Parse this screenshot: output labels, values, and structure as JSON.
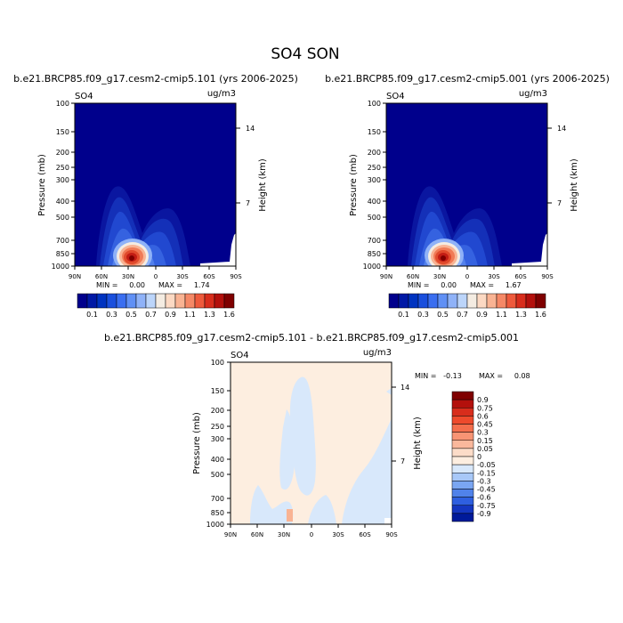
{
  "main_title": "SO4 SON",
  "chart_data": [
    {
      "type": "heatmap",
      "panel": "run-a",
      "title": "b.e21.BRCP85.f09_g17.cesm2-cmip5.101 (yrs 2006-2025)",
      "left_label": "SO4",
      "units": "ug/m3",
      "ylabel": "Pressure (mb)",
      "ylabel_right": "Height (km)",
      "y_scale": "log",
      "ylim": [
        1000,
        100
      ],
      "y_ticks": [
        "100",
        "150",
        "200",
        "250",
        "300",
        "400",
        "500",
        "700",
        "850",
        "1000"
      ],
      "y_right_ticks": [
        "14",
        "7"
      ],
      "xlim": [
        90,
        -90
      ],
      "x_ticks": [
        "90N",
        "60N",
        "30N",
        "0",
        "30S",
        "60S",
        "90S"
      ],
      "min_text": "MIN =     0.00",
      "max_text": "MAX =     1.74",
      "min": 0.0,
      "max": 1.74,
      "levels": [
        "0.1",
        "0.3",
        "0.5",
        "0.7",
        "0.9",
        "1.1",
        "1.3",
        "1.6"
      ],
      "colors": [
        "#00008c",
        "#0019a5",
        "#0033c0",
        "#1a4fdd",
        "#3a6ef0",
        "#6090f5",
        "#8fb2f8",
        "#bcd5fa",
        "#f4ece2",
        "#fcd9c3",
        "#f9b393",
        "#f58866",
        "#ee5a3c",
        "#d82d1c",
        "#b3100c",
        "#7f0000"
      ]
    },
    {
      "type": "heatmap",
      "panel": "run-b",
      "title": "b.e21.BRCP85.f09_g17.cesm2-cmip5.001 (yrs 2006-2025)",
      "left_label": "SO4",
      "units": "ug/m3",
      "ylabel": "Pressure (mb)",
      "ylabel_right": "Height (km)",
      "y_scale": "log",
      "ylim": [
        1000,
        100
      ],
      "y_ticks": [
        "100",
        "150",
        "200",
        "250",
        "300",
        "400",
        "500",
        "700",
        "850",
        "1000"
      ],
      "y_right_ticks": [
        "14",
        "7"
      ],
      "xlim": [
        90,
        -90
      ],
      "x_ticks": [
        "90N",
        "60N",
        "30N",
        "0",
        "30S",
        "60S",
        "90S"
      ],
      "min_text": "MIN =     0.00",
      "max_text": "MAX =     1.67",
      "min": 0.0,
      "max": 1.67,
      "levels": [
        "0.1",
        "0.3",
        "0.5",
        "0.7",
        "0.9",
        "1.1",
        "1.3",
        "1.6"
      ],
      "colors": [
        "#00008c",
        "#0019a5",
        "#0033c0",
        "#1a4fdd",
        "#3a6ef0",
        "#6090f5",
        "#8fb2f8",
        "#bcd5fa",
        "#f4ece2",
        "#fcd9c3",
        "#f9b393",
        "#f58866",
        "#ee5a3c",
        "#d82d1c",
        "#b3100c",
        "#7f0000"
      ]
    },
    {
      "type": "heatmap",
      "panel": "difference",
      "title": "b.e21.BRCP85.f09_g17.cesm2-cmip5.101 - b.e21.BRCP85.f09_g17.cesm2-cmip5.001",
      "left_label": "SO4",
      "units": "ug/m3",
      "ylabel": "Pressure (mb)",
      "ylabel_right": "Height (km)",
      "y_scale": "log",
      "ylim": [
        1000,
        100
      ],
      "y_ticks": [
        "100",
        "150",
        "200",
        "250",
        "300",
        "400",
        "500",
        "700",
        "850",
        "1000"
      ],
      "y_right_ticks": [
        "14",
        "7"
      ],
      "xlim": [
        90,
        -90
      ],
      "x_ticks": [
        "90N",
        "60N",
        "30N",
        "0",
        "30S",
        "60S",
        "90S"
      ],
      "min_text": "MIN =   -0.13",
      "max_text": "MAX =     0.08",
      "min": -0.13,
      "max": 0.08,
      "levels": [
        "0.9",
        "0.75",
        "0.6",
        "0.45",
        "0.3",
        "0.15",
        "0.05",
        "0",
        "-0.05",
        "-0.15",
        "-0.3",
        "-0.45",
        "-0.6",
        "-0.75",
        "-0.9"
      ],
      "colors": [
        "#7f0000",
        "#b3100c",
        "#d82d1c",
        "#ee4a2c",
        "#f46e4c",
        "#f89474",
        "#fab89c",
        "#fcdcc8",
        "#fdeee0",
        "#d8e8fb",
        "#a8c8f8",
        "#7aa6f2",
        "#5082ea",
        "#2e5fe0",
        "#1436c0",
        "#001a9a"
      ]
    }
  ]
}
